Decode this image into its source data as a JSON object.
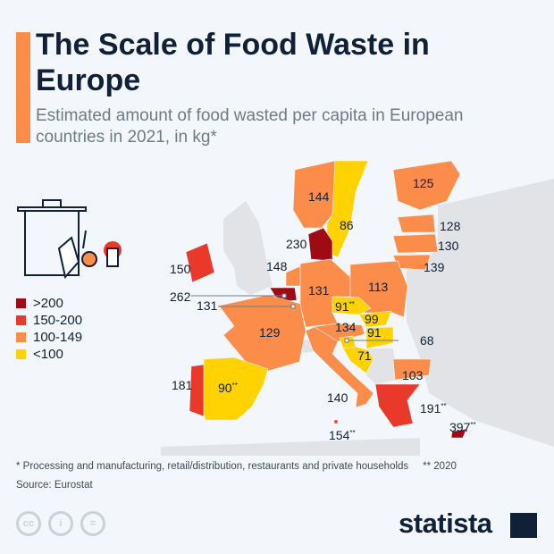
{
  "title": "The Scale of Food Waste in Europe",
  "subtitle": "Estimated amount of food wasted per capita in European countries in 2021, in kg*",
  "colors": {
    "gt200": "#9e0b14",
    "150-200": "#e8392b",
    "100-149": "#fc8c4a",
    "lt100": "#ffd200",
    "no_data": "#e1e3e6",
    "accent": "#fc8c4a"
  },
  "legend": [
    {
      "label": ">200",
      "color": "#9e0b14"
    },
    {
      "label": "150-200",
      "color": "#e8392b"
    },
    {
      "label": "100-149",
      "color": "#fc8c4a"
    },
    {
      "label": "<100",
      "color": "#ffd200"
    }
  ],
  "countries": [
    {
      "value": "144",
      "note": ""
    },
    {
      "value": "86",
      "note": ""
    },
    {
      "value": "125",
      "note": ""
    },
    {
      "value": "128",
      "note": ""
    },
    {
      "value": "130",
      "note": ""
    },
    {
      "value": "139",
      "note": ""
    },
    {
      "value": "230",
      "note": ""
    },
    {
      "value": "150",
      "note": ""
    },
    {
      "value": "148",
      "note": ""
    },
    {
      "value": "262",
      "note": ""
    },
    {
      "value": "131",
      "note": ""
    },
    {
      "value": "131",
      "note": ""
    },
    {
      "value": "113",
      "note": ""
    },
    {
      "value": "91",
      "note": "**"
    },
    {
      "value": "99",
      "note": ""
    },
    {
      "value": "134",
      "note": ""
    },
    {
      "value": "91",
      "note": ""
    },
    {
      "value": "68",
      "note": ""
    },
    {
      "value": "71",
      "note": ""
    },
    {
      "value": "129",
      "note": ""
    },
    {
      "value": "140",
      "note": ""
    },
    {
      "value": "154",
      "note": "**"
    },
    {
      "value": "90",
      "note": "**"
    },
    {
      "value": "181",
      "note": ""
    },
    {
      "value": "103",
      "note": ""
    },
    {
      "value": "191",
      "note": "**"
    },
    {
      "value": "397",
      "note": "**"
    }
  ],
  "footnote": "* Processing and manufacturing, retail/distribution, restaurants and private households     ** 2020",
  "source": "Source: Eurostat",
  "icons": [
    "trash-bin-food-icon",
    "cc-icon",
    "by-icon",
    "nd-icon",
    "statista-logo"
  ],
  "brand": "statista"
}
